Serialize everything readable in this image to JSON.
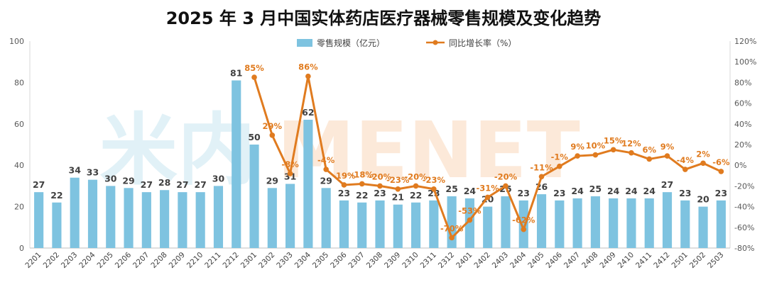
{
  "chart_data": {
    "type": "bar+line",
    "title": "2025 年 3 月中国实体药店医疗器械零售规模及变化趋势",
    "watermark": [
      "米内",
      "MENET"
    ],
    "categories": [
      "2201",
      "2202",
      "2203",
      "2204",
      "2205",
      "2206",
      "2207",
      "2208",
      "2209",
      "2210",
      "2211",
      "2212",
      "2301",
      "2302",
      "2303",
      "2304",
      "2305",
      "2306",
      "2307",
      "2308",
      "2309",
      "2310",
      "2311",
      "2312",
      "2401",
      "2402",
      "2403",
      "2404",
      "2405",
      "2406",
      "2407",
      "2408",
      "2409",
      "2410",
      "2411",
      "2412",
      "2501",
      "2502",
      "2503"
    ],
    "series": [
      {
        "name": "零售规模（亿元）",
        "type": "bar",
        "axis": "left",
        "color": "#7EC3E0",
        "values": [
          27,
          22,
          34,
          33,
          30,
          29,
          27,
          28,
          27,
          27,
          30,
          81,
          50,
          29,
          31,
          62,
          29,
          23,
          22,
          23,
          21,
          22,
          23,
          25,
          24,
          20,
          25,
          23,
          26,
          23,
          24,
          25,
          24,
          24,
          24,
          27,
          23,
          20,
          23
        ]
      },
      {
        "name": "同比增长率（%）",
        "type": "line",
        "axis": "right",
        "color": "#E07B1F",
        "values": [
          null,
          null,
          null,
          null,
          null,
          null,
          null,
          null,
          null,
          null,
          null,
          null,
          85,
          29,
          -8,
          86,
          -4,
          -19,
          -18,
          -20,
          -23,
          -20,
          -23,
          -70,
          -53,
          -31,
          -20,
          -62,
          -11,
          -1,
          9,
          10,
          15,
          12,
          6,
          9,
          -4,
          2,
          -6
        ],
        "labels": [
          null,
          null,
          null,
          null,
          null,
          null,
          null,
          null,
          null,
          null,
          null,
          null,
          "85%",
          "29%",
          "-8%",
          "86%",
          "-4%",
          "-19%",
          "-18%",
          "-20%",
          "-23%",
          "-20%",
          "-23%",
          "-70%",
          "-53%",
          "-31%",
          "-20%",
          "-62%",
          "-11%",
          "-1%",
          "9%",
          "10%",
          "15%",
          "12%",
          "6%",
          "9%",
          "-4%",
          "2%",
          "-6%"
        ]
      }
    ],
    "yleft": {
      "min": 0,
      "max": 100,
      "ticks": [
        0,
        20,
        40,
        60,
        80,
        100
      ],
      "tick_labels": [
        "0",
        "20",
        "40",
        "60",
        "80",
        "100"
      ]
    },
    "yright": {
      "min": -80,
      "max": 120,
      "ticks": [
        -80,
        -60,
        -40,
        -20,
        0,
        20,
        40,
        60,
        80,
        100,
        120
      ],
      "tick_labels": [
        "-80%",
        "-60%",
        "-40%",
        "-20%",
        "0%",
        "20%",
        "40%",
        "60%",
        "80%",
        "100%",
        "120%"
      ]
    },
    "legend_position": "top-center",
    "grid": false
  }
}
